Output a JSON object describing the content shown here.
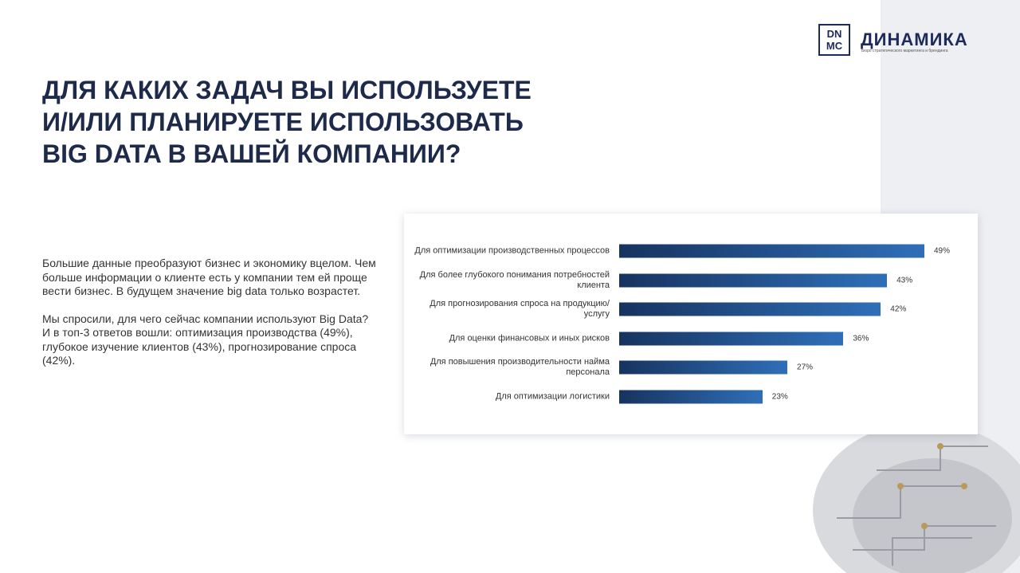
{
  "slide": {
    "logo_mark": "DN MC",
    "logo_name": "ДИНАМИКА",
    "logo_tagline": "Бюро стратегического маркетинга и брендинга",
    "title_lines": [
      "ДЛЯ КАКИХ ЗАДАЧ ВЫ ИСПОЛЬЗУЕТЕ",
      "И/ИЛИ ПЛАНИРУЕТЕ ИСПОЛЬЗОВАТЬ",
      "BIG DATA В ВАШЕЙ КОМПАНИИ?"
    ],
    "paragraphs": [
      "Большие данные преобразуют бизнес и экономику вцелом. Чем больше информации о клиенте есть у компании тем ей проще вести бизнес. В будущем значение big data только возрастет.",
      "Мы спросили, для чего сейчас компании используют Big Data?",
      "И в топ-3 ответов вошли: оптимизация производства (49%), глубокое изучение клиентов (43%), прогнозирование спроса (42%)."
    ]
  },
  "chart_data": {
    "type": "hbar",
    "categories": [
      "Для оптимизации производственных процессов",
      "Для более глубокого понимания потребностей клиента",
      "Для прогнозирования спроса на продукцию/услугу",
      "Для оценки финансовых и иных рисков",
      "Для повышения производительности найма персонала",
      "Для оптимизации логистики"
    ],
    "values": [
      49,
      43,
      42,
      36,
      27,
      23
    ],
    "value_labels": [
      "49%",
      "43%",
      "42%",
      "36%",
      "27%",
      "23%"
    ],
    "color": "#2f6fb8"
  }
}
